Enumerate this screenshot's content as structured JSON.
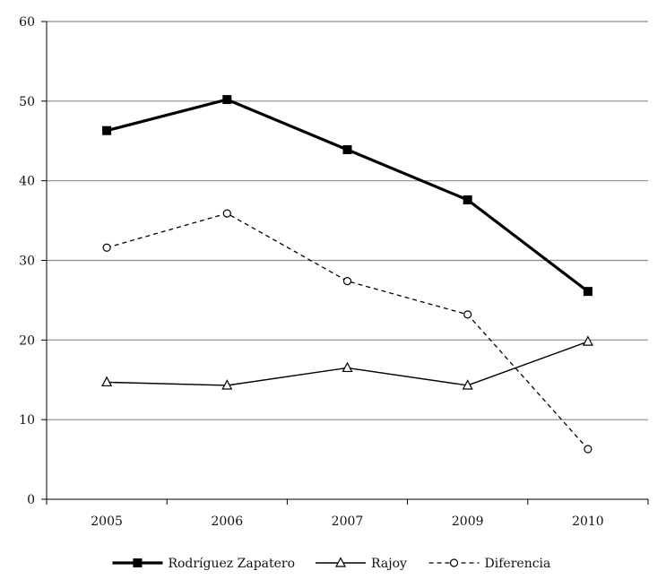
{
  "chart_data": {
    "type": "line",
    "title": "",
    "xlabel": "",
    "ylabel": "",
    "categories": [
      "2005",
      "2006",
      "2007",
      "2009",
      "2010"
    ],
    "ylim": [
      0,
      60
    ],
    "yticks": [
      0,
      10,
      20,
      30,
      40,
      50,
      60
    ],
    "grid": true,
    "legend_position": "bottom",
    "series": [
      {
        "name": "Rodríguez Zapatero",
        "values": [
          46.3,
          50.2,
          43.9,
          37.6,
          26.1
        ],
        "marker": "square-filled",
        "line": "solid-thick",
        "color": "#000000"
      },
      {
        "name": "Rajoy",
        "values": [
          14.7,
          14.3,
          16.5,
          14.3,
          19.8
        ],
        "marker": "triangle-open",
        "line": "solid-thin",
        "color": "#000000"
      },
      {
        "name": "Diferencia",
        "values": [
          31.6,
          35.9,
          27.4,
          23.2,
          6.3
        ],
        "marker": "circle-open",
        "line": "dashed",
        "color": "#000000"
      }
    ]
  }
}
